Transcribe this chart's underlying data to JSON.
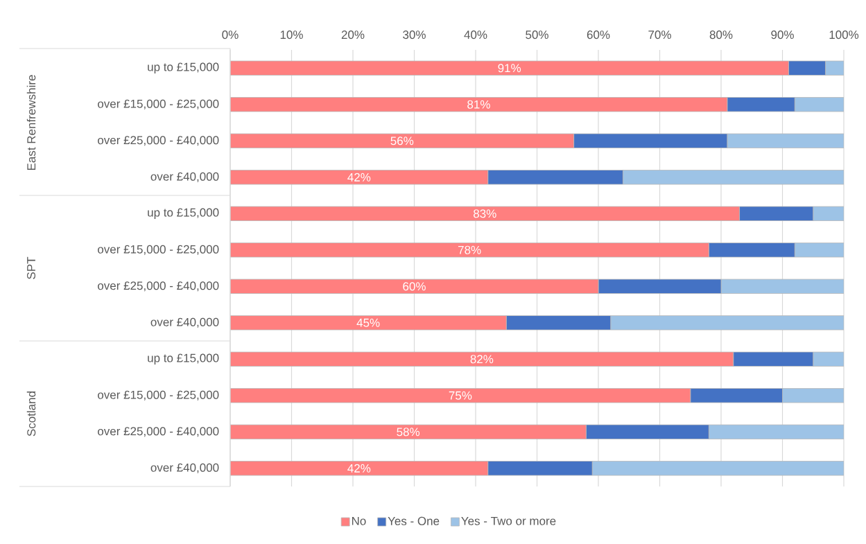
{
  "chart_data": {
    "type": "bar",
    "orientation": "horizontal",
    "stacked": true,
    "categories": [
      "up to £15,000",
      "over £15,000 - £25,000",
      "over £25,000 - £40,000",
      "over £40,000",
      "up to £15,000",
      "over £15,000 - £25,000",
      "over £25,000 - £40,000",
      "over £40,000",
      "up to £15,000",
      "over £15,000 - £25,000",
      "over £25,000 - £40,000",
      "over £40,000"
    ],
    "annotations": [
      "East Renfrewshire",
      "SPT",
      "Scotland"
    ],
    "series": [
      {
        "name": "No",
        "color": "#ff7f7f",
        "values": [
          91,
          81,
          56,
          42,
          83,
          78,
          60,
          45,
          82,
          75,
          58,
          42
        ],
        "value_labels": [
          "91%",
          "81%",
          "56%",
          "42%",
          "83%",
          "78%",
          "60%",
          "45%",
          "82%",
          "75%",
          "58%",
          "42%"
        ]
      },
      {
        "name": "Yes - One",
        "color": "#4472c4",
        "values": [
          6,
          11,
          25,
          22,
          12,
          14,
          20,
          17,
          13,
          15,
          20,
          17
        ]
      },
      {
        "name": "Yes - Two or more",
        "color": "#9dc3e6",
        "values": [
          3,
          8,
          19,
          36,
          5,
          8,
          20,
          38,
          5,
          10,
          22,
          41
        ]
      }
    ],
    "xlim": [
      0,
      100
    ],
    "xticks": [
      {
        "value": 0,
        "label": "0%"
      },
      {
        "value": 10,
        "label": "10%"
      },
      {
        "value": 20,
        "label": "20%"
      },
      {
        "value": 30,
        "label": "30%"
      },
      {
        "value": 40,
        "label": "40%"
      },
      {
        "value": 50,
        "label": "50%"
      },
      {
        "value": 60,
        "label": "60%"
      },
      {
        "value": 70,
        "label": "70%"
      },
      {
        "value": 80,
        "label": "80%"
      },
      {
        "value": 90,
        "label": "90%"
      },
      {
        "value": 100,
        "label": "100%"
      }
    ],
    "grid": "x",
    "legend": "bottom"
  }
}
